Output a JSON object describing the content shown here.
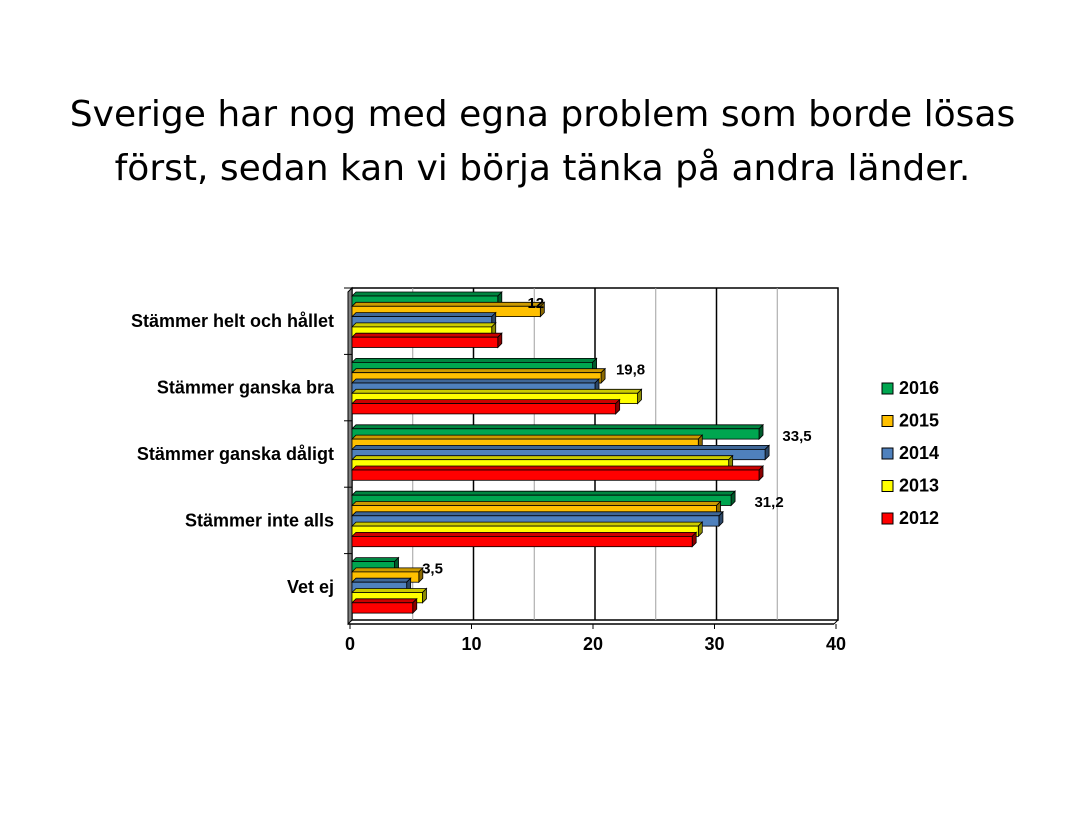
{
  "title_lines": [
    "Sverige har nog med egna problem som borde lösas",
    "först, sedan kan vi börja tänka på andra länder."
  ],
  "chart_data": {
    "type": "bar",
    "orientation": "horizontal",
    "categories": [
      "Stämmer helt och hållet",
      "Stämmer ganska bra",
      "Stämmer ganska dåligt",
      "Stämmer inte alls",
      "Vet ej"
    ],
    "series": [
      {
        "name": "2016",
        "color": "#00a650",
        "values": [
          12,
          19.8,
          33.5,
          31.2,
          3.5
        ]
      },
      {
        "name": "2015",
        "color": "#ffc000",
        "values": [
          15.5,
          20.5,
          28.5,
          30,
          5.5
        ]
      },
      {
        "name": "2014",
        "color": "#4f81bd",
        "values": [
          11.5,
          20,
          34,
          30.2,
          4.5
        ]
      },
      {
        "name": "2013",
        "color": "#ffff00",
        "values": [
          11.5,
          23.5,
          31,
          28.5,
          5.8
        ]
      },
      {
        "name": "2012",
        "color": "#ff0000",
        "values": [
          12,
          21.7,
          33.5,
          28,
          5
        ]
      }
    ],
    "data_labels": [
      {
        "category_index": 0,
        "text": "12"
      },
      {
        "category_index": 1,
        "text": "19,8"
      },
      {
        "category_index": 2,
        "text": "33,5"
      },
      {
        "category_index": 3,
        "text": "31,2"
      },
      {
        "category_index": 4,
        "text": "3,5"
      }
    ],
    "x_ticks": [
      "0",
      "10",
      "20",
      "30",
      "40"
    ],
    "xlim": [
      0,
      40
    ],
    "grid": true,
    "legend_position": "right"
  }
}
